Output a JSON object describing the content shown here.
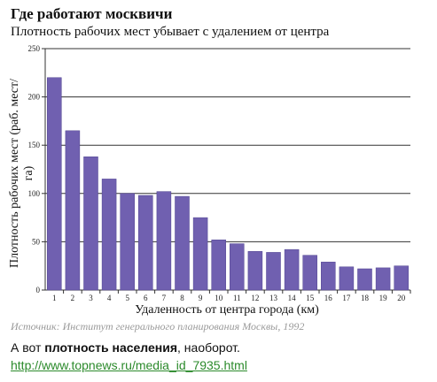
{
  "title": "Где работают москвичи",
  "subtitle": "Плотность рабочих мест убывает с удалением от центра",
  "source": "Источник: Институт генерального планирования Москвы, 1992",
  "note": {
    "prefix": "А вот ",
    "bold": "плотность населения",
    "suffix": ", наоборот."
  },
  "link": "http://www.topnews.ru/media_id_7935.html",
  "colors": {
    "bar": "#7060b0",
    "bar_edge": "#4f4290",
    "grid": "#333333"
  },
  "chart_data": {
    "type": "bar",
    "title": "Где работают москвичи",
    "subtitle": "Плотность рабочих мест убывает с удалением от центра",
    "xlabel": "Удаленность от центра города (км)",
    "ylabel": "Плотность рабочих мест (раб. мест/га)",
    "categories": [
      "1",
      "2",
      "3",
      "4",
      "5",
      "6",
      "7",
      "8",
      "9",
      "10",
      "11",
      "12",
      "13",
      "14",
      "15",
      "16",
      "17",
      "18",
      "19",
      "20"
    ],
    "values": [
      220,
      165,
      138,
      115,
      100,
      98,
      102,
      97,
      75,
      52,
      48,
      40,
      39,
      42,
      36,
      29,
      24,
      22,
      23,
      25
    ],
    "ylim": [
      0,
      250
    ],
    "yticks": [
      0,
      50,
      100,
      150,
      200,
      250
    ],
    "grid": true
  }
}
